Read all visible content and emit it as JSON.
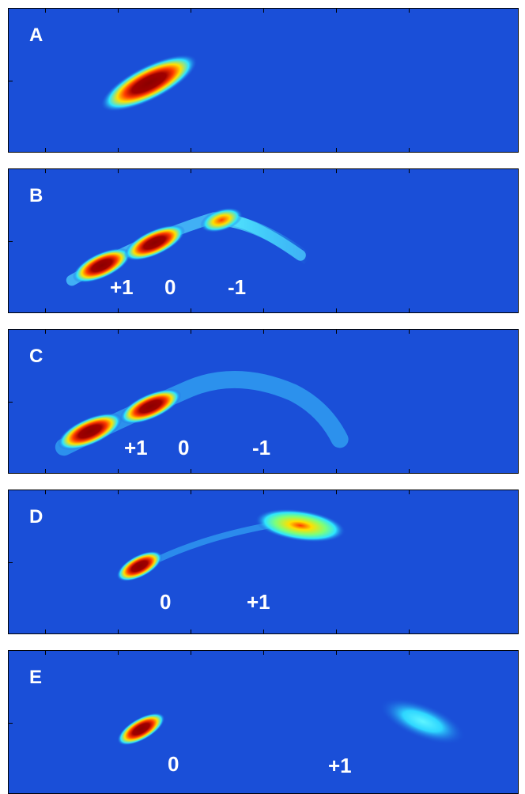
{
  "panels": [
    {
      "letter": "A",
      "labels": []
    },
    {
      "letter": "B",
      "labels": [
        "+1",
        "0",
        "-1"
      ]
    },
    {
      "letter": "C",
      "labels": [
        "+1",
        "0",
        "-1"
      ]
    },
    {
      "letter": "D",
      "labels": [
        "0",
        "+1"
      ]
    },
    {
      "letter": "E",
      "labels": [
        "0",
        "+1"
      ]
    }
  ],
  "colors": {
    "background": "#1a4fd8",
    "hot_core": "#8b0000",
    "warm": "#ff3b00",
    "mid": "#ffe000",
    "cool": "#2ee6ff",
    "label": "#ffffff",
    "frame": "#000000"
  }
}
